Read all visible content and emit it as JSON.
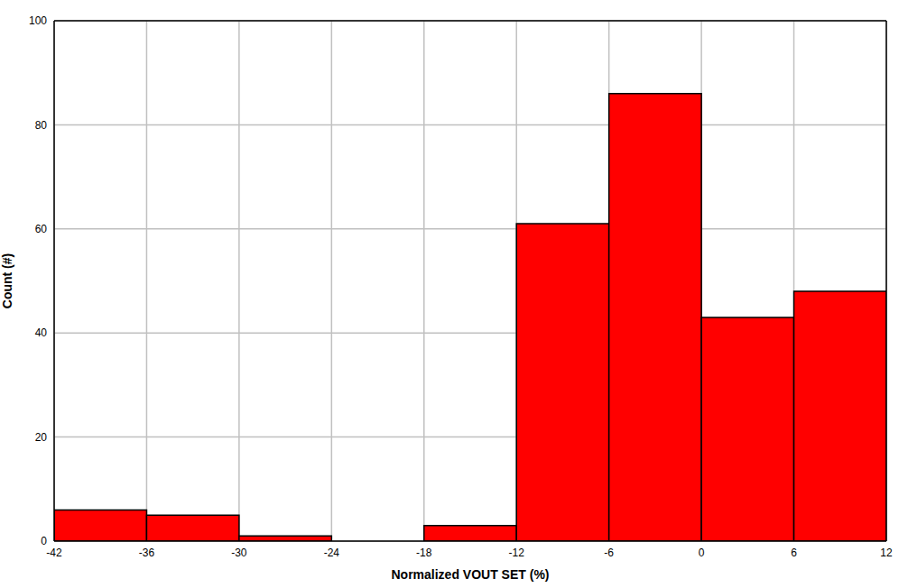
{
  "chart_data": {
    "type": "histogram",
    "x_label": "Normalized VOUT SET (%)",
    "y_label": "Count (#)",
    "bins": [
      -42,
      -36,
      -30,
      -24,
      -18,
      -12,
      -6,
      0,
      6,
      12
    ],
    "values": [
      6,
      5,
      1,
      0,
      3,
      61,
      86,
      43,
      48
    ],
    "color": "#ff0000",
    "xlim": [
      -42,
      12
    ],
    "ylim": [
      0,
      100
    ],
    "xticks": [
      -42,
      -36,
      -30,
      -24,
      -18,
      -12,
      -6,
      0,
      6,
      12
    ],
    "yticks": [
      0,
      20,
      40,
      60,
      80,
      100
    ],
    "grid": true
  }
}
